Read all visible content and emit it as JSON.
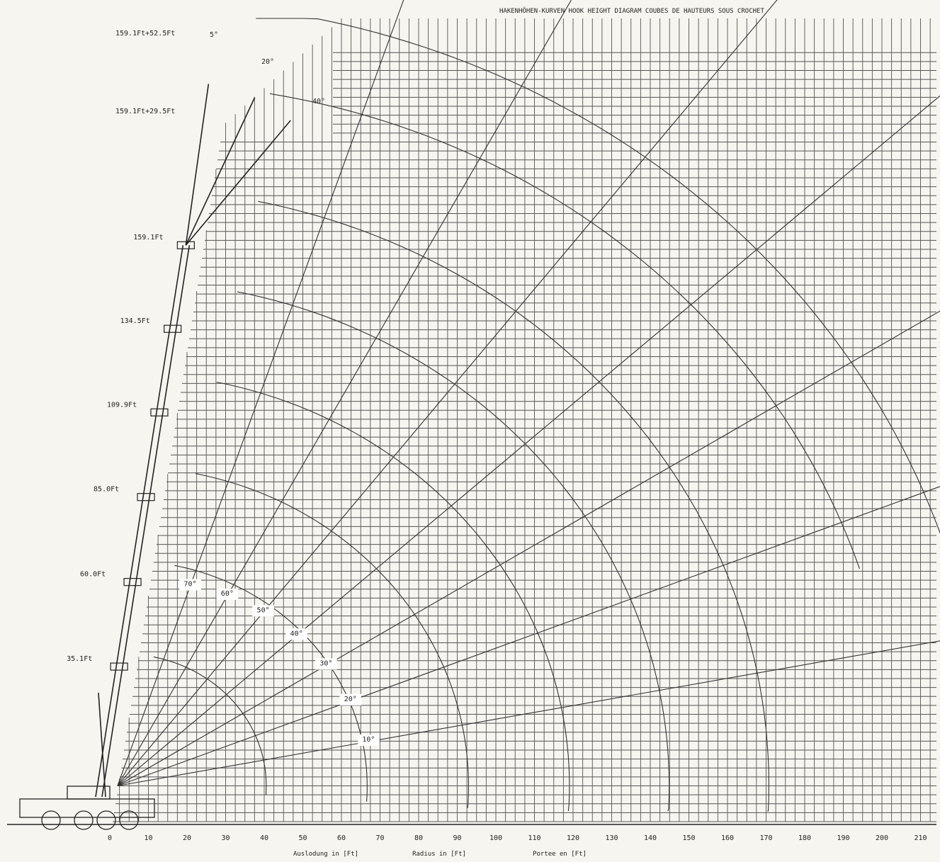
{
  "chart_data": {
    "type": "line",
    "title": "HAKENHÖHEN-KURVEN   HOOK HEIGHT DIAGRAM   COUBES DE HAUTEURS SOUS CROCHET",
    "xlabels": [
      "Auslodung in [Ft]",
      "Radius in [Ft]",
      "Portee en [Ft]"
    ],
    "x_ticks": [
      0,
      10,
      20,
      30,
      40,
      50,
      60,
      70,
      80,
      90,
      100,
      110,
      120,
      130,
      140,
      150,
      160,
      170,
      180,
      190,
      200,
      210
    ],
    "xlim": [
      -25,
      215
    ],
    "ylim": [
      0,
      215
    ],
    "grid": true,
    "boom_lengths_ft": [
      {
        "label": "35.1Ft",
        "length": 35.1
      },
      {
        "label": "60.0Ft",
        "length": 60.0
      },
      {
        "label": "85.0Ft",
        "length": 85.0
      },
      {
        "label": "109.9Ft",
        "length": 109.9
      },
      {
        "label": "134.5Ft",
        "length": 134.5
      },
      {
        "label": "159.1Ft",
        "length": 159.1
      }
    ],
    "jib_configs": [
      {
        "label": "159.1Ft+29.5Ft",
        "length": 29.5
      },
      {
        "label": "159.1Ft+52.5Ft",
        "length": 52.5
      }
    ],
    "jib_offsets": [
      "5°",
      "20°",
      "40°"
    ],
    "boom_angle_labels": [
      "70°",
      "60°",
      "50°",
      "40°",
      "30°",
      "20°",
      "10°"
    ],
    "boom_angles_deg": [
      70,
      60,
      50,
      40,
      30,
      20,
      10
    ],
    "pivot": {
      "x": 0,
      "y": 10
    }
  }
}
